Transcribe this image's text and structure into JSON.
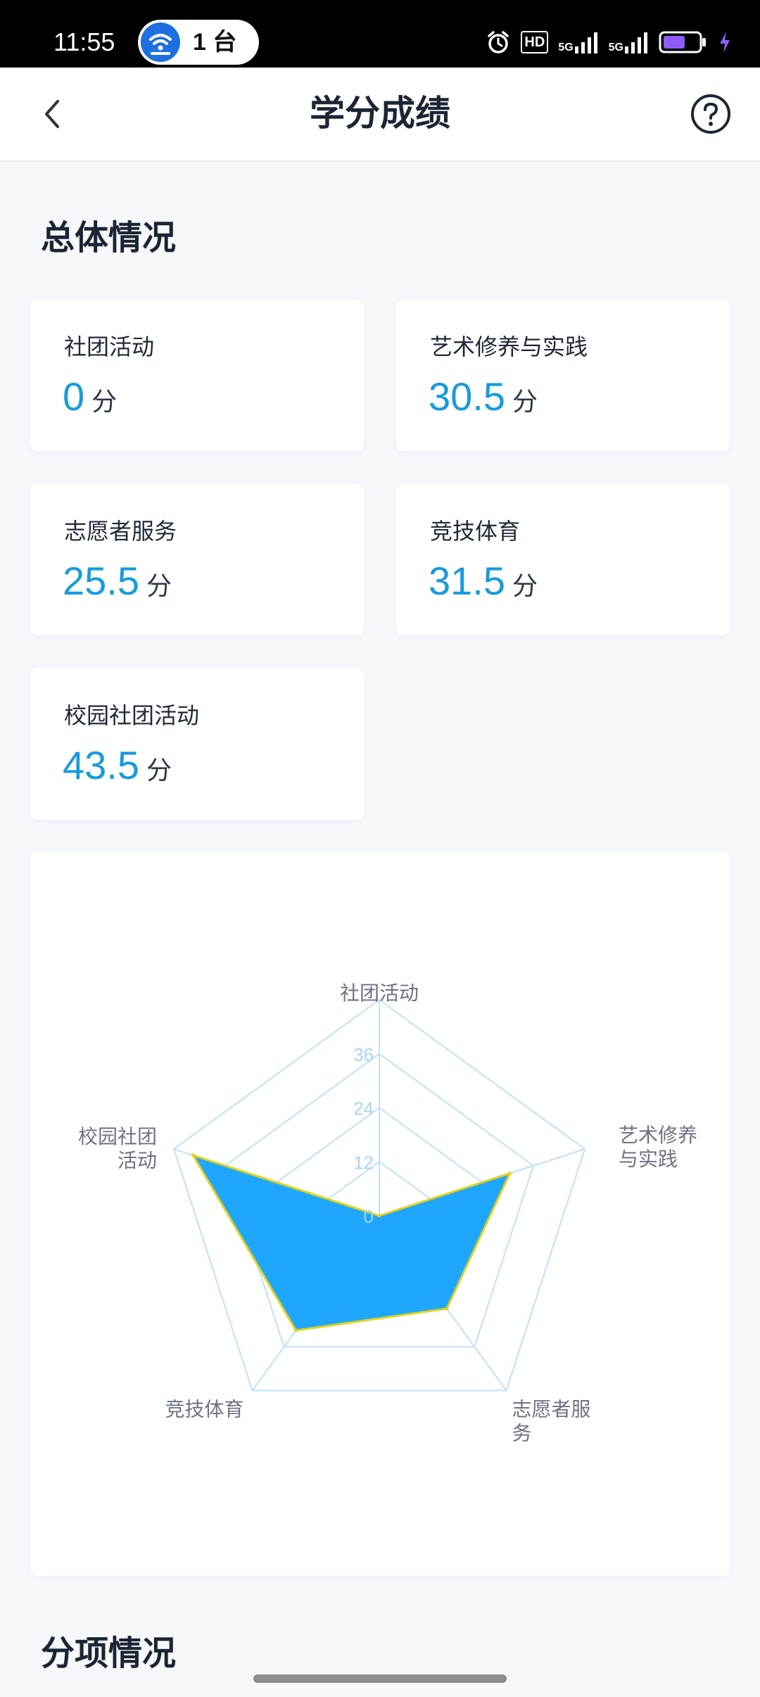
{
  "status_bar": {
    "time": "11:55",
    "hotspot_count": "1 台",
    "signal_label_1": "5G",
    "signal_label_2": "5G",
    "hd_label": "HD"
  },
  "header": {
    "title": "学分成绩"
  },
  "overview": {
    "title": "总体情况",
    "unit": "分",
    "cards": [
      {
        "label": "社团活动",
        "value": "0"
      },
      {
        "label": "艺术修养与实践",
        "value": "30.5"
      },
      {
        "label": "志愿者服务",
        "value": "25.5"
      },
      {
        "label": "竞技体育",
        "value": "31.5"
      },
      {
        "label": "校园社团活动",
        "value": "43.5"
      }
    ]
  },
  "detail": {
    "title": "分项情况"
  },
  "chart_data": {
    "type": "radar",
    "title": "",
    "indicators": [
      "社团活动",
      "艺术修养与实践",
      "志愿者服务",
      "竞技体育",
      "校园社团活动"
    ],
    "indicator_display": [
      [
        "社团活动"
      ],
      [
        "艺术修养",
        "与实践"
      ],
      [
        "志愿者服",
        "务"
      ],
      [
        "竞技体育"
      ],
      [
        "校园社团",
        "活动"
      ]
    ],
    "values": [
      0,
      30.5,
      25.5,
      31.5,
      43.5
    ],
    "max": 48,
    "ticks": [
      0,
      12,
      24,
      36
    ],
    "fill_color": "#1ea7fd",
    "stroke_color": "#e2d21c",
    "grid_color": "#bfe1f8",
    "tick_color": "#a8d4f2",
    "label_color": "#6b7280"
  },
  "colors": {
    "accent": "#169bdc",
    "background": "#f6f8fc"
  }
}
